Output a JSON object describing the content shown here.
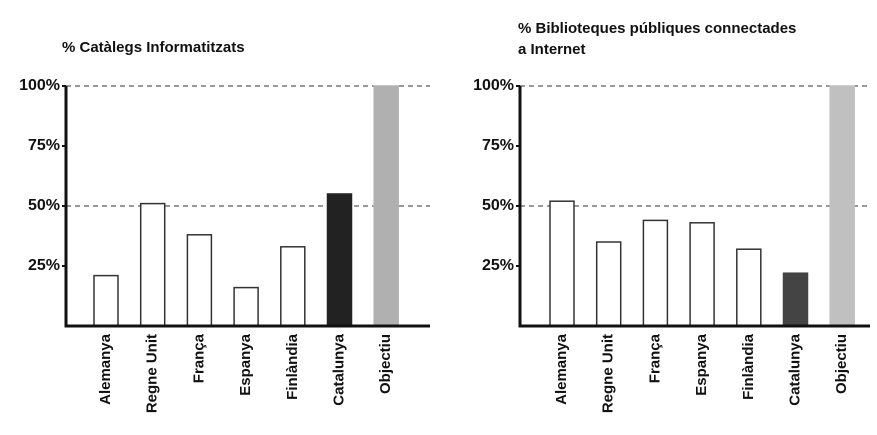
{
  "chart_data": [
    {
      "type": "bar",
      "title": [
        "% Catàlegs Informatitzats"
      ],
      "categories": [
        "Alemanya",
        "Regne Unit",
        "França",
        "Espanya",
        "Finlàndia",
        "Catalunya",
        "Objectiu"
      ],
      "values": [
        21,
        51,
        38,
        16,
        33,
        55,
        100
      ],
      "colors": [
        "#ffffff",
        "#ffffff",
        "#ffffff",
        "#ffffff",
        "#ffffff",
        "#222222",
        "#b0b0b0"
      ],
      "ylim": [
        0,
        100
      ],
      "yticks": [
        {
          "value": 25,
          "label": "25%"
        },
        {
          "value": 50,
          "label": "50%"
        },
        {
          "value": 75,
          "label": "75%"
        },
        {
          "value": 100,
          "label": "100%"
        }
      ],
      "grid_values": [
        50,
        100
      ]
    },
    {
      "type": "bar",
      "title": [
        "% Biblioteques públiques connectades",
        "a Internet"
      ],
      "categories": [
        "Alemanya",
        "Regne Unit",
        "França",
        "Espanya",
        "Finlàndia",
        "Catalunya",
        "Objectiu"
      ],
      "values": [
        52,
        35,
        44,
        43,
        32,
        22,
        100
      ],
      "colors": [
        "#ffffff",
        "#ffffff",
        "#ffffff",
        "#ffffff",
        "#ffffff",
        "#444444",
        "#c0c0c0"
      ],
      "ylim": [
        0,
        100
      ],
      "yticks": [
        {
          "value": 25,
          "label": "25%"
        },
        {
          "value": 50,
          "label": "50%"
        },
        {
          "value": 75,
          "label": "75%"
        },
        {
          "value": 100,
          "label": "100%"
        }
      ],
      "grid_values": [
        50,
        100
      ]
    }
  ]
}
